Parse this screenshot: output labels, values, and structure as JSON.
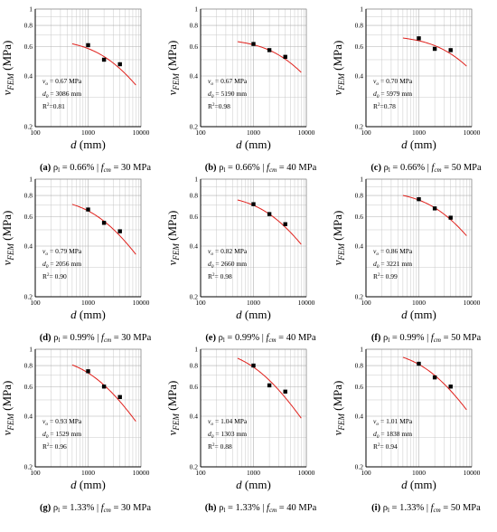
{
  "figure": {
    "xlabel_var": "d",
    "xlabel_unit": " (mm)",
    "ylabel_var": "v",
    "ylabel_sub": "FEM",
    "ylabel_unit": " (MPa)",
    "rho_symbol": "ρ",
    "rho_sub": "l",
    "fcm_symbol": "f",
    "fcm_sub": "cm",
    "ann_v0_symbol": "v",
    "ann_v0_sub": "o",
    "ann_d0_symbol": "d",
    "ann_d0_sub": "0",
    "ann_r2_label": "R",
    "ann_r2_sup": "2",
    "separator": "|"
  },
  "chart_data": [
    {
      "type": "scatter",
      "panel_label": "(a)",
      "rho": "= 0.66%",
      "fcm": "= 30 MPa",
      "v0_text": "= 0.67 MPa",
      "d0_text": "= 3086 mm",
      "r2_text": "=0.81",
      "xlim": [
        100,
        10000
      ],
      "ylim": [
        0.2,
        1
      ],
      "log_x": true,
      "log_y": true,
      "x_ticks": [
        "100",
        "1000",
        "10000"
      ],
      "y_ticks": [
        "0.2",
        "0.4",
        "0.6",
        "0.8",
        "1"
      ],
      "series": [
        {
          "x": [
            1000,
            2000,
            4000
          ],
          "y": [
            0.61,
            0.5,
            0.47
          ]
        }
      ],
      "fit": {
        "v0": 0.67,
        "d0": 3086,
        "x_range": [
          500,
          8000
        ]
      }
    },
    {
      "type": "scatter",
      "panel_label": "(b)",
      "rho": "= 0.66%",
      "fcm": "= 40 MPa",
      "v0_text": "= 0.67 MPa",
      "d0_text": "= 5190 mm",
      "r2_text": "=0.98",
      "xlim": [
        100,
        10000
      ],
      "ylim": [
        0.2,
        1
      ],
      "log_x": true,
      "log_y": true,
      "x_ticks": [
        "100",
        "1000",
        "10000"
      ],
      "y_ticks": [
        "0.2",
        "0.4",
        "0.6",
        "0.8",
        "1"
      ],
      "series": [
        {
          "x": [
            1000,
            2000,
            4000
          ],
          "y": [
            0.62,
            0.57,
            0.52
          ]
        }
      ],
      "fit": {
        "v0": 0.67,
        "d0": 5190,
        "x_range": [
          500,
          8000
        ]
      }
    },
    {
      "type": "scatter",
      "panel_label": "(c)",
      "rho": "= 0.66%",
      "fcm": "= 50 MPa",
      "v0_text": "= 0.70 MPa",
      "d0_text": "= 5979 mm",
      "r2_text": "=0.78",
      "xlim": [
        100,
        10000
      ],
      "ylim": [
        0.2,
        1
      ],
      "log_x": true,
      "log_y": true,
      "x_ticks": [
        "100",
        "1000",
        "10000"
      ],
      "y_ticks": [
        "0.2",
        "0.4",
        "0.6",
        "0.8",
        "1"
      ],
      "series": [
        {
          "x": [
            1000,
            2000,
            4000
          ],
          "y": [
            0.67,
            0.58,
            0.57
          ]
        }
      ],
      "fit": {
        "v0": 0.7,
        "d0": 5979,
        "x_range": [
          500,
          8000
        ]
      }
    },
    {
      "type": "scatter",
      "panel_label": "(d)",
      "rho": "= 0.99%",
      "fcm": "= 30 MPa",
      "v0_text": "= 0.79 MPa",
      "d0_text": "= 2056 mm",
      "r2_text": "= 0.90",
      "xlim": [
        100,
        10000
      ],
      "ylim": [
        0.2,
        1
      ],
      "log_x": true,
      "log_y": true,
      "x_ticks": [
        "100",
        "1000",
        "10000"
      ],
      "y_ticks": [
        "0.2",
        "0.4",
        "0.6",
        "0.8",
        "1"
      ],
      "series": [
        {
          "x": [
            1000,
            2000,
            4000
          ],
          "y": [
            0.66,
            0.55,
            0.49
          ]
        }
      ],
      "fit": {
        "v0": 0.79,
        "d0": 2056,
        "x_range": [
          500,
          8000
        ]
      }
    },
    {
      "type": "scatter",
      "panel_label": "(e)",
      "rho": "= 0.99%",
      "fcm": "= 40 MPa",
      "v0_text": "= 0.82 MPa",
      "d0_text": "= 2660 mm",
      "r2_text": "= 0.98",
      "xlim": [
        100,
        10000
      ],
      "ylim": [
        0.2,
        1
      ],
      "log_x": true,
      "log_y": true,
      "x_ticks": [
        "100",
        "1000",
        "10000"
      ],
      "y_ticks": [
        "0.2",
        "0.4",
        "0.6",
        "0.8",
        "1"
      ],
      "series": [
        {
          "x": [
            1000,
            2000,
            4000
          ],
          "y": [
            0.71,
            0.62,
            0.54
          ]
        }
      ],
      "fit": {
        "v0": 0.82,
        "d0": 2660,
        "x_range": [
          500,
          8000
        ]
      }
    },
    {
      "type": "scatter",
      "panel_label": "(f)",
      "rho": "= 0.99%",
      "fcm": "= 50 MPa",
      "v0_text": "= 0.86 MPa",
      "d0_text": "= 3221 mm",
      "r2_text": "= 0.99",
      "xlim": [
        100,
        10000
      ],
      "ylim": [
        0.2,
        1
      ],
      "log_x": true,
      "log_y": true,
      "x_ticks": [
        "100",
        "1000",
        "10000"
      ],
      "y_ticks": [
        "0.2",
        "0.4",
        "0.6",
        "0.8",
        "1"
      ],
      "series": [
        {
          "x": [
            1000,
            2000,
            4000
          ],
          "y": [
            0.76,
            0.67,
            0.59
          ]
        }
      ],
      "fit": {
        "v0": 0.86,
        "d0": 3221,
        "x_range": [
          500,
          8000
        ]
      }
    },
    {
      "type": "scatter",
      "panel_label": "(g)",
      "rho": "= 1.33%",
      "fcm": "= 30 MPa",
      "v0_text": "= 0.93 MPa",
      "d0_text": "= 1529 mm",
      "r2_text": "= 0.96",
      "xlim": [
        100,
        10000
      ],
      "ylim": [
        0.2,
        1
      ],
      "log_x": true,
      "log_y": true,
      "x_ticks": [
        "100",
        "1000",
        "10000"
      ],
      "y_ticks": [
        "0.2",
        "0.4",
        "0.6",
        "0.8",
        "1"
      ],
      "series": [
        {
          "x": [
            1000,
            2000,
            4000
          ],
          "y": [
            0.74,
            0.6,
            0.52
          ]
        }
      ],
      "fit": {
        "v0": 0.93,
        "d0": 1529,
        "x_range": [
          500,
          8000
        ]
      }
    },
    {
      "type": "scatter",
      "panel_label": "(h)",
      "rho": "= 1.33%",
      "fcm": "= 40 MPa",
      "v0_text": "= 1.04 MPa",
      "d0_text": "= 1303 mm",
      "r2_text": "= 0.88",
      "xlim": [
        100,
        10000
      ],
      "ylim": [
        0.2,
        1
      ],
      "log_x": true,
      "log_y": true,
      "x_ticks": [
        "100",
        "1000",
        "10000"
      ],
      "y_ticks": [
        "0.2",
        "0.4",
        "0.6",
        "0.8",
        "1"
      ],
      "series": [
        {
          "x": [
            1000,
            2000,
            4000
          ],
          "y": [
            0.8,
            0.61,
            0.56
          ]
        }
      ],
      "fit": {
        "v0": 1.04,
        "d0": 1303,
        "x_range": [
          500,
          8000
        ]
      }
    },
    {
      "type": "scatter",
      "panel_label": "(i)",
      "rho": "= 1.33%",
      "fcm": "= 50 MPa",
      "v0_text": "= 1.01 MPa",
      "d0_text": "= 1838 mm",
      "r2_text": "= 0.94",
      "xlim": [
        100,
        10000
      ],
      "ylim": [
        0.2,
        1
      ],
      "log_x": true,
      "log_y": true,
      "x_ticks": [
        "100",
        "1000",
        "10000"
      ],
      "y_ticks": [
        "0.2",
        "0.4",
        "0.6",
        "0.8",
        "1"
      ],
      "series": [
        {
          "x": [
            1000,
            2000,
            4000
          ],
          "y": [
            0.82,
            0.68,
            0.6
          ]
        }
      ],
      "fit": {
        "v0": 1.01,
        "d0": 1838,
        "x_range": [
          500,
          8000
        ]
      }
    }
  ],
  "colors": {
    "fit_line": "#e0201b",
    "marker": "#000000",
    "axis": "#000000",
    "grid": "#c8c8c8",
    "frame": "#888888"
  }
}
